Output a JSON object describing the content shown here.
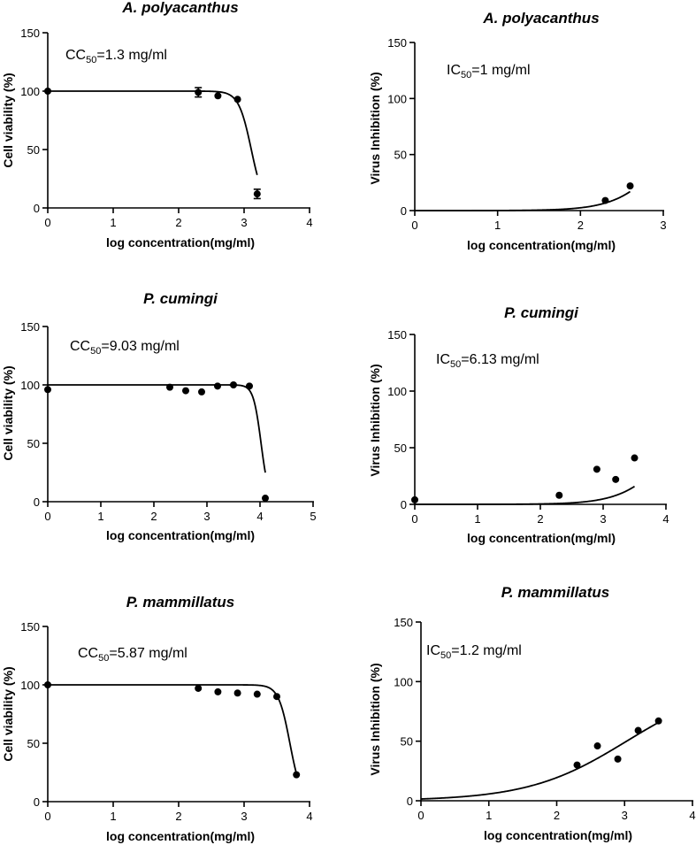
{
  "figure": {
    "panels": [
      {
        "title": "A. polyacanthus",
        "ylabel": "Cell viability (%)",
        "xlabel": "log concentration(mg/ml)",
        "annotation_prefix": "CC",
        "annotation_sub": "50",
        "annotation_value": "=1.3 mg/ml"
      },
      {
        "title": "A. polyacanthus",
        "ylabel": "Virus Inhibition (%)",
        "xlabel": "log concentration(mg/ml)",
        "annotation_prefix": "IC",
        "annotation_sub": "50",
        "annotation_value": "=1 mg/ml"
      },
      {
        "title": "P. cumingi",
        "ylabel": "Cell viability (%)",
        "xlabel": "log concentration(mg/ml)",
        "annotation_prefix": "CC",
        "annotation_sub": "50",
        "annotation_value": "=9.03 mg/ml"
      },
      {
        "title": "P. cumingi",
        "ylabel": "Virus Inhibition (%)",
        "xlabel": "log concentration(mg/ml)",
        "annotation_prefix": "IC",
        "annotation_sub": "50",
        "annotation_value": "=6.13 mg/ml"
      },
      {
        "title": "P. mammillatus",
        "ylabel": "Cell viability (%)",
        "xlabel": "log concentration(mg/ml)",
        "annotation_prefix": "CC",
        "annotation_sub": "50",
        "annotation_value": "=5.87 mg/ml"
      },
      {
        "title": "P. mammillatus",
        "ylabel": "Virus Inhibition (%)",
        "xlabel": "log concentration(mg/ml)",
        "annotation_prefix": "IC",
        "annotation_sub": "50",
        "annotation_value": "=1.2 mg/ml"
      }
    ]
  },
  "chart_data": [
    {
      "type": "scatter",
      "title": "A. polyacanthus",
      "xlabel": "log concentration(mg/ml)",
      "ylabel": "Cell viability (%)",
      "xlim": [
        0,
        4
      ],
      "ylim": [
        0,
        150
      ],
      "xticks": [
        0,
        1,
        2,
        3,
        4
      ],
      "yticks": [
        0,
        50,
        100,
        150
      ],
      "points": [
        {
          "x": 0,
          "y": 100
        },
        {
          "x": 2.3,
          "y": 99,
          "err": 4
        },
        {
          "x": 2.6,
          "y": 96
        },
        {
          "x": 2.9,
          "y": 93
        },
        {
          "x": 3.2,
          "y": 12,
          "err": 4
        }
      ],
      "fit": {
        "model": "dose-response",
        "top": 100,
        "bottom": 0,
        "logEC50": 3.11,
        "hill": -4.5
      },
      "annotation": "CC50=1.3 mg/ml",
      "grid": false
    },
    {
      "type": "scatter",
      "title": "A. polyacanthus",
      "xlabel": "log concentration(mg/ml)",
      "ylabel": "Virus Inhibition (%)",
      "xlim": [
        0,
        3
      ],
      "ylim": [
        0,
        150
      ],
      "xticks": [
        0,
        1,
        2,
        3
      ],
      "yticks": [
        0,
        50,
        100,
        150
      ],
      "points": [
        {
          "x": 2.3,
          "y": 9
        },
        {
          "x": 2.6,
          "y": 22
        }
      ],
      "fit": {
        "model": "dose-response",
        "top": 100,
        "bottom": 0,
        "logEC50": 3.06,
        "hill": 1.5,
        "xstart": 0
      },
      "annotation": "IC50=1 mg/ml",
      "grid": false
    },
    {
      "type": "scatter",
      "title": "P. cumingi",
      "xlabel": "log concentration(mg/ml)",
      "ylabel": "Cell viability (%)",
      "xlim": [
        0,
        5
      ],
      "ylim": [
        0,
        150
      ],
      "xticks": [
        0,
        1,
        2,
        3,
        4,
        5
      ],
      "yticks": [
        0,
        50,
        100,
        150
      ],
      "points": [
        {
          "x": 0,
          "y": 96
        },
        {
          "x": 2.3,
          "y": 98
        },
        {
          "x": 2.6,
          "y": 95
        },
        {
          "x": 2.9,
          "y": 94
        },
        {
          "x": 3.2,
          "y": 99
        },
        {
          "x": 3.5,
          "y": 100
        },
        {
          "x": 3.8,
          "y": 99
        },
        {
          "x": 4.1,
          "y": 3
        }
      ],
      "fit": {
        "model": "dose-response",
        "top": 100,
        "bottom": 0,
        "logEC50": 4.02,
        "hill": -6
      },
      "annotation": "CC50=9.03 mg/ml",
      "grid": false
    },
    {
      "type": "scatter",
      "title": "P. cumingi",
      "xlabel": "log concentration(mg/ml)",
      "ylabel": "Virus Inhibition (%)",
      "xlim": [
        0,
        4
      ],
      "ylim": [
        0,
        150
      ],
      "xticks": [
        0,
        1,
        2,
        3,
        4
      ],
      "yticks": [
        0,
        50,
        100,
        150
      ],
      "points": [
        {
          "x": 0,
          "y": 4
        },
        {
          "x": 2.3,
          "y": 8
        },
        {
          "x": 2.9,
          "y": 31
        },
        {
          "x": 3.2,
          "y": 22
        },
        {
          "x": 3.5,
          "y": 41
        }
      ],
      "fit": {
        "model": "dose-response",
        "top": 100,
        "bottom": 0,
        "logEC50": 4.13,
        "hill": 1.15,
        "xend": 3.5
      },
      "annotation": "IC50=6.13 mg/ml",
      "grid": false
    },
    {
      "type": "scatter",
      "title": "P. mammillatus",
      "xlabel": "log concentration(mg/ml)",
      "ylabel": "Cell viability (%)",
      "xlim": [
        0,
        4
      ],
      "ylim": [
        0,
        150
      ],
      "xticks": [
        0,
        1,
        2,
        3,
        4
      ],
      "yticks": [
        0,
        50,
        100,
        150
      ],
      "points": [
        {
          "x": 0,
          "y": 100
        },
        {
          "x": 2.3,
          "y": 97
        },
        {
          "x": 2.6,
          "y": 94
        },
        {
          "x": 2.9,
          "y": 93
        },
        {
          "x": 3.2,
          "y": 92
        },
        {
          "x": 3.5,
          "y": 90
        },
        {
          "x": 3.8,
          "y": 23
        }
      ],
      "fit": {
        "model": "dose-response",
        "top": 100,
        "bottom": 0,
        "logEC50": 3.7,
        "hill": -5,
        "xend": 3.8
      },
      "annotation": "CC50=5.87 mg/ml",
      "grid": false
    },
    {
      "type": "scatter",
      "title": "P. mammillatus",
      "xlabel": "log concentration(mg/ml)",
      "ylabel": "Virus Inhibition (%)",
      "xlim": [
        0,
        4
      ],
      "ylim": [
        0,
        150
      ],
      "xticks": [
        0,
        1,
        2,
        3,
        4
      ],
      "yticks": [
        0,
        50,
        100,
        150
      ],
      "points": [
        {
          "x": 2.3,
          "y": 30
        },
        {
          "x": 2.6,
          "y": 46
        },
        {
          "x": 2.9,
          "y": 35
        },
        {
          "x": 3.2,
          "y": 59
        },
        {
          "x": 3.5,
          "y": 67
        }
      ],
      "fit": {
        "model": "dose-response",
        "top": 100,
        "bottom": 0,
        "logEC50": 3.03,
        "hill": 0.6,
        "xstart": 0,
        "xend": 3.5
      },
      "annotation": "IC50=1.2 mg/ml",
      "grid": false
    }
  ]
}
